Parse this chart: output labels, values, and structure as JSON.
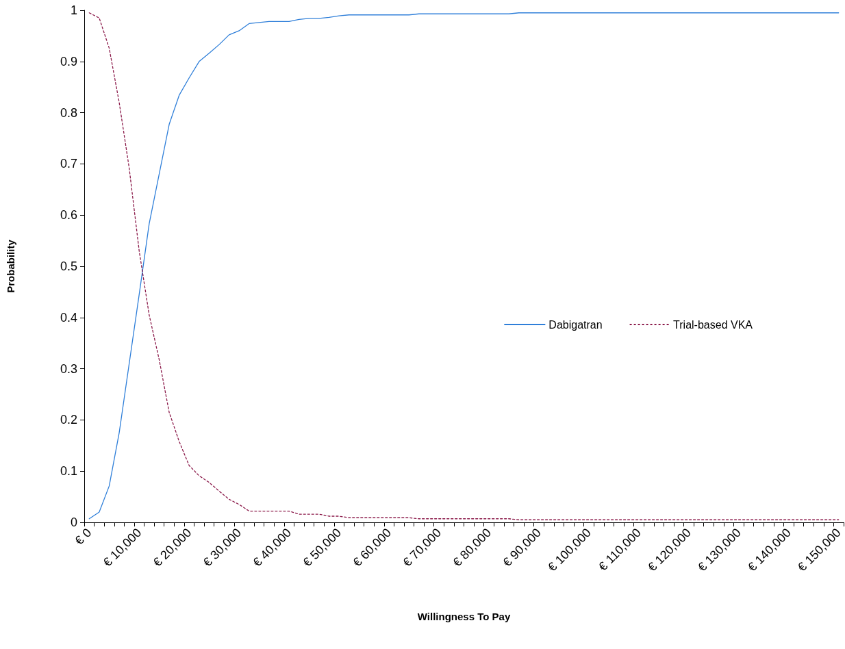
{
  "chart_data": {
    "type": "line",
    "xlabel": "Willingness To Pay",
    "ylabel": "Probability",
    "categories": [
      "€ 0",
      null,
      null,
      null,
      null,
      "€ 10,000",
      null,
      null,
      null,
      null,
      "€ 20,000",
      null,
      null,
      null,
      null,
      "€ 30,000",
      null,
      null,
      null,
      null,
      "€ 40,000",
      null,
      null,
      null,
      null,
      "€ 50,000",
      null,
      null,
      null,
      null,
      "€ 60,000",
      null,
      null,
      null,
      null,
      "€ 70,000",
      null,
      null,
      null,
      null,
      "€ 80,000",
      null,
      null,
      null,
      null,
      "€ 90,000",
      null,
      null,
      null,
      null,
      "€ 100,000",
      null,
      null,
      null,
      null,
      "€ 110,000",
      null,
      null,
      null,
      null,
      "€ 120,000",
      null,
      null,
      null,
      null,
      "€ 130,000",
      null,
      null,
      null,
      null,
      "€ 140,000",
      null,
      null,
      null,
      null,
      "€ 150,000"
    ],
    "series": [
      {
        "name": "Dabigatran",
        "color": "#2f7fd9",
        "line_style": "solid",
        "values": [
          0.007,
          0.02,
          0.071,
          0.175,
          0.31,
          0.445,
          0.583,
          0.68,
          0.777,
          0.834,
          0.868,
          0.9,
          0.916,
          0.933,
          0.952,
          0.96,
          0.974,
          0.976,
          0.978,
          0.978,
          0.978,
          0.982,
          0.984,
          0.984,
          0.986,
          0.989,
          0.991,
          0.991,
          0.991,
          0.991,
          0.991,
          0.991,
          0.991,
          0.993,
          0.993,
          0.993,
          0.993,
          0.993,
          0.993,
          0.993,
          0.993,
          0.993,
          0.993,
          0.995,
          0.995,
          0.995,
          0.995,
          0.995,
          0.995,
          0.995,
          0.995,
          0.995,
          0.995,
          0.995,
          0.995,
          0.995,
          0.995,
          0.995,
          0.995,
          0.995,
          0.995,
          0.995,
          0.995,
          0.995,
          0.995,
          0.995,
          0.995,
          0.995,
          0.995,
          0.995,
          0.995,
          0.995,
          0.995,
          0.995,
          0.995,
          0.995
        ]
      },
      {
        "name": "Trial-based VKA",
        "color": "#8b1a4a",
        "line_style": "dotted",
        "values": [
          0.995,
          0.985,
          0.926,
          0.82,
          0.692,
          0.53,
          0.405,
          0.318,
          0.215,
          0.158,
          0.111,
          0.091,
          0.078,
          0.061,
          0.045,
          0.035,
          0.022,
          0.022,
          0.022,
          0.022,
          0.022,
          0.016,
          0.016,
          0.016,
          0.012,
          0.012,
          0.009,
          0.009,
          0.009,
          0.009,
          0.009,
          0.009,
          0.009,
          0.007,
          0.007,
          0.007,
          0.007,
          0.007,
          0.007,
          0.007,
          0.007,
          0.007,
          0.007,
          0.005,
          0.005,
          0.005,
          0.005,
          0.005,
          0.005,
          0.005,
          0.005,
          0.005,
          0.005,
          0.005,
          0.005,
          0.005,
          0.005,
          0.005,
          0.005,
          0.005,
          0.005,
          0.005,
          0.005,
          0.005,
          0.005,
          0.005,
          0.005,
          0.005,
          0.005,
          0.005,
          0.005,
          0.005,
          0.005,
          0.005,
          0.005,
          0.005
        ]
      }
    ],
    "ylim": [
      0,
      1
    ],
    "yticks": [
      0,
      0.1,
      0.2,
      0.3,
      0.4,
      0.5,
      0.6,
      0.7,
      0.8,
      0.9,
      1
    ],
    "grid": false,
    "legend": "right",
    "marker": "none"
  }
}
